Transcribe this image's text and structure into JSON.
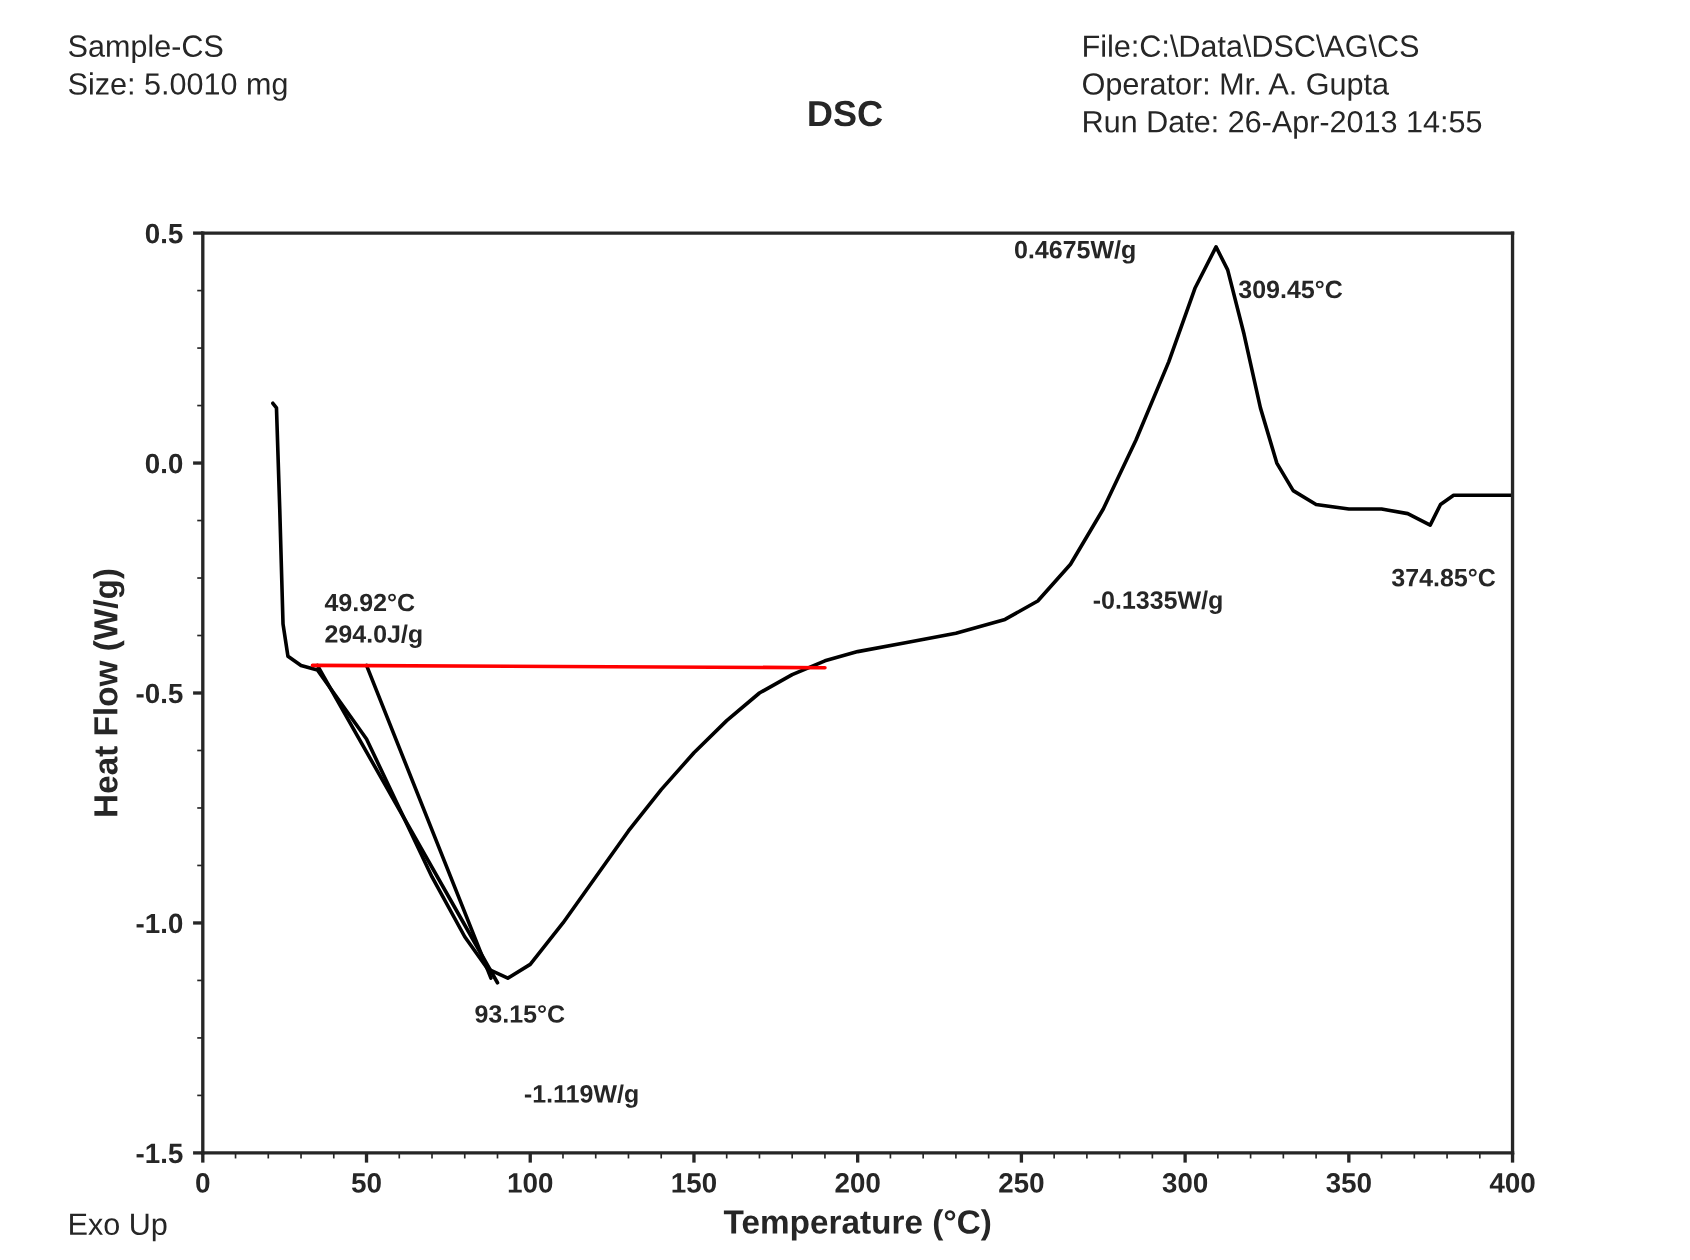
{
  "chart_data": {
    "type": "line",
    "title": "DSC",
    "xlabel": "Temperature (°C)",
    "ylabel": "Heat Flow (W/g)",
    "xlim": [
      0,
      400
    ],
    "xticks": [
      0,
      50,
      100,
      150,
      200,
      250,
      300,
      350,
      400
    ],
    "ylim": [
      -1.5,
      0.5
    ],
    "yticks": [
      {
        "value": -1.5,
        "label": "-1.5"
      },
      {
        "value": -1.0,
        "label": "-1.0"
      },
      {
        "value": -0.5,
        "label": "-0.5"
      },
      {
        "value": 0,
        "label": "0.0"
      },
      {
        "value": 0.5,
        "label": "0.5"
      }
    ],
    "grid": false,
    "legend": false,
    "series": [
      {
        "color": "#000000",
        "x": [
          21.4,
          22.5,
          23.5,
          24.5,
          26,
          30,
          35,
          40,
          50,
          60,
          70,
          80,
          87,
          93.15,
          100,
          110,
          120,
          130,
          140,
          150,
          160,
          170,
          180,
          190,
          200,
          215,
          230,
          245,
          255,
          265,
          275,
          285,
          295,
          303,
          309.45,
          313,
          318,
          323,
          328,
          333,
          340,
          350,
          360,
          368,
          374.85,
          378,
          382,
          400
        ],
        "values": [
          0.13,
          0.12,
          -0.1,
          -0.35,
          -0.42,
          -0.44,
          -0.45,
          -0.5,
          -0.6,
          -0.75,
          -0.9,
          -1.03,
          -1.1,
          -1.12,
          -1.09,
          -1.0,
          -0.9,
          -0.8,
          -0.71,
          -0.63,
          -0.56,
          -0.5,
          -0.46,
          -0.43,
          -0.41,
          -0.39,
          -0.37,
          -0.34,
          -0.3,
          -0.22,
          -0.1,
          0.05,
          0.22,
          0.38,
          0.47,
          0.42,
          0.28,
          0.12,
          0.0,
          -0.06,
          -0.09,
          -0.1,
          -0.1,
          -0.11,
          -0.135,
          -0.09,
          -0.07,
          -0.07
        ]
      },
      {
        "color": "#000000",
        "x": [
          35,
          90
        ],
        "values": [
          -0.44,
          -1.13
        ]
      },
      {
        "color": "#000000",
        "x": [
          50,
          88
        ],
        "values": [
          -0.44,
          -1.12
        ]
      },
      {
        "color": "#ff0000",
        "x": [
          33.5,
          190
        ],
        "values": [
          -0.44,
          -0.445
        ]
      }
    ],
    "annotations": [
      "Sample-CS",
      "Size: 5.0010 mg",
      "File:C:\\Data\\DSC\\AG\\CS",
      "Operator: Mr. A. Gupta",
      "Run Date: 26-Apr-2013 14:55",
      "Exo Up",
      "49.92°C",
      "294.0J/g",
      "-1.119W/g",
      "0.4675W/g",
      {
        "text": "93.15°C",
        "x": 93.15,
        "y": -1.12
      },
      {
        "text": "309.45°C",
        "x": 309.45,
        "y": 0.4675
      },
      {
        "text": "-0.1335W/g",
        "x": 265,
        "y": -0.22
      },
      {
        "text": "374.85°C",
        "x": 374.85,
        "y": -0.135
      }
    ]
  }
}
